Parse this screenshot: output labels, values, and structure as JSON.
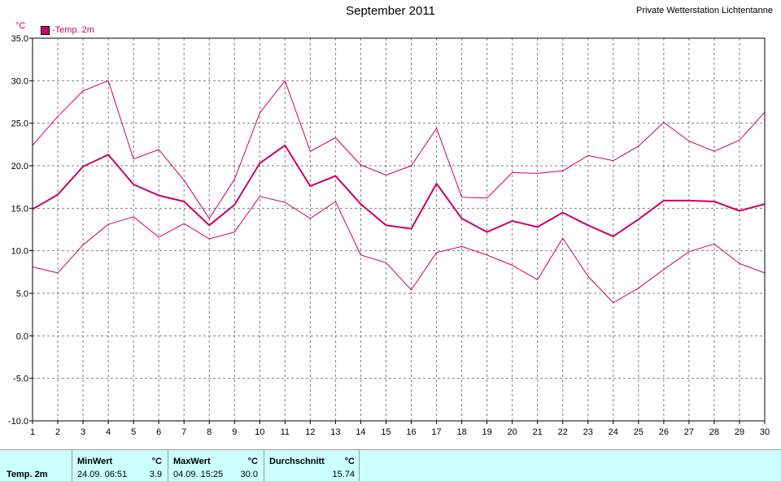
{
  "header": {
    "title": "September 2011",
    "station": "Private Wetterstation Lichtentanne",
    "unit": "°C",
    "legend_label": "-Temp. 2m"
  },
  "colors": {
    "series": "#cc0066",
    "grid": "#808080",
    "stats_bg": "#ccffff"
  },
  "stats": {
    "row_label": "Temp. 2m",
    "min": {
      "label": "MinWert",
      "unit": "°C",
      "time": "24.09.  06:51",
      "value": "3.9"
    },
    "max": {
      "label": "MaxWert",
      "unit": "°C",
      "time": "04.09.  15:25",
      "value": "30.0"
    },
    "avg": {
      "label": "Durchschnitt",
      "unit": "°C",
      "value": "15.74"
    }
  },
  "chart_data": {
    "type": "line",
    "title": "September 2011",
    "ylabel": "°C",
    "xlabel": "",
    "x": [
      1,
      2,
      3,
      4,
      5,
      6,
      7,
      8,
      9,
      10,
      11,
      12,
      13,
      14,
      15,
      16,
      17,
      18,
      19,
      20,
      21,
      22,
      23,
      24,
      25,
      26,
      27,
      28,
      29,
      30
    ],
    "xlim": [
      1,
      30
    ],
    "ylim": [
      -10,
      35
    ],
    "yticks": [
      "-10.0",
      "-5.0",
      "0.0",
      "5.0",
      "10.0",
      "15.0",
      "20.0",
      "25.0",
      "30.0",
      "35.0"
    ],
    "grid": true,
    "legend_position": "top-left",
    "series": [
      {
        "name": "-Temp. 2m",
        "role": "mean",
        "values": [
          14.9,
          16.6,
          19.9,
          21.3,
          17.8,
          16.5,
          15.8,
          13.0,
          15.4,
          20.3,
          22.4,
          17.6,
          18.8,
          15.5,
          13.0,
          12.6,
          17.9,
          13.8,
          12.2,
          13.5,
          12.8,
          14.5,
          13.0,
          11.7,
          13.7,
          15.9,
          15.9,
          15.8,
          14.7,
          15.5
        ]
      },
      {
        "role": "max",
        "values": [
          22.4,
          25.8,
          28.8,
          30.0,
          20.8,
          21.9,
          18.3,
          13.8,
          18.4,
          26.2,
          30.0,
          21.7,
          23.3,
          20.1,
          18.9,
          20.0,
          24.4,
          16.3,
          16.2,
          19.2,
          19.1,
          19.4,
          21.2,
          20.6,
          22.3,
          25.1,
          22.9,
          21.7,
          23.0,
          26.3
        ]
      },
      {
        "role": "min",
        "values": [
          8.1,
          7.4,
          10.7,
          13.1,
          14.0,
          11.6,
          13.2,
          11.4,
          12.2,
          16.4,
          15.7,
          13.8,
          15.8,
          9.5,
          8.6,
          5.4,
          9.8,
          10.5,
          9.5,
          8.3,
          6.6,
          11.5,
          7.0,
          3.9,
          5.6,
          7.8,
          9.9,
          10.8,
          8.5,
          7.4
        ]
      }
    ]
  }
}
